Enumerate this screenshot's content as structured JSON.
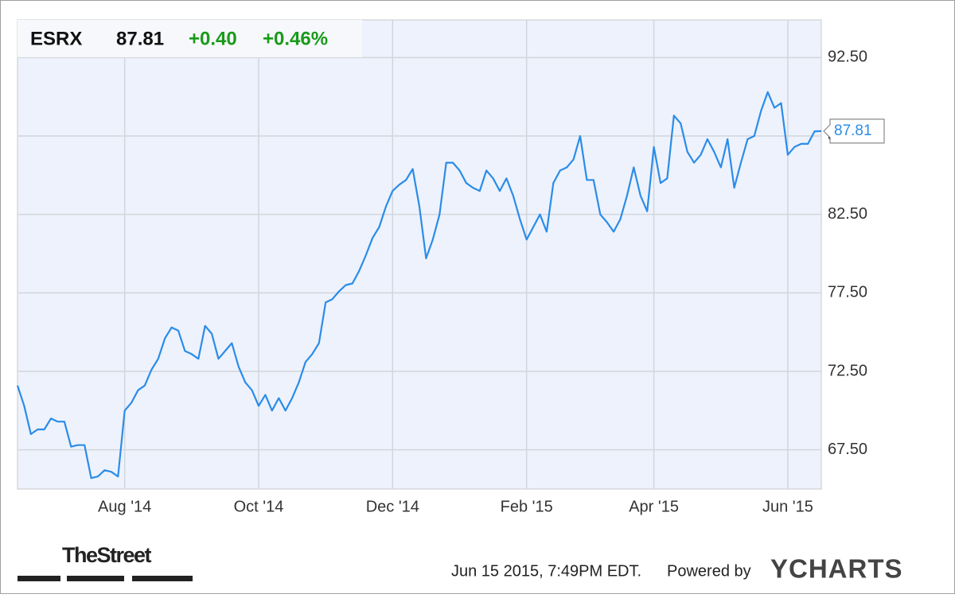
{
  "header": {
    "symbol": "ESRX",
    "change": "+0.40",
    "change_percent": "+0.46%"
  },
  "footer": {
    "timestamp": "Jun 15 2015, 7:49PM EDT.",
    "powered_by": "Powered by",
    "brand": "YCHARTS",
    "publisher": "TheStreet"
  },
  "chart_data": {
    "type": "line",
    "color": "#2b8ce8",
    "grid": true,
    "categories": [
      null,
      null,
      null,
      null,
      null,
      null,
      null,
      null,
      null,
      null,
      null,
      null,
      null,
      null,
      null,
      null,
      "Aug '14",
      null,
      null,
      null,
      null,
      null,
      null,
      null,
      null,
      null,
      null,
      null,
      null,
      null,
      null,
      null,
      null,
      null,
      null,
      null,
      "Oct '14",
      null,
      null,
      null,
      null,
      null,
      null,
      null,
      null,
      null,
      null,
      null,
      null,
      null,
      null,
      null,
      null,
      null,
      null,
      null,
      "Dec '14",
      null,
      null,
      null,
      null,
      null,
      null,
      null,
      null,
      null,
      null,
      null,
      null,
      null,
      null,
      null,
      null,
      null,
      null,
      null,
      "Feb '15",
      null,
      null,
      null,
      null,
      null,
      null,
      null,
      null,
      null,
      null,
      null,
      null,
      null,
      null,
      null,
      null,
      null,
      null,
      "Apr '15",
      null,
      null,
      null,
      null,
      null,
      null,
      null,
      null,
      null,
      null,
      null,
      null,
      null,
      null,
      null,
      null,
      null,
      null,
      null,
      "Jun '15",
      null,
      null,
      null,
      null,
      null
    ],
    "values": [
      71.6,
      70.3,
      68.5,
      68.8,
      68.8,
      69.5,
      69.3,
      69.3,
      67.7,
      67.8,
      67.8,
      65.7,
      65.8,
      66.2,
      66.1,
      65.8,
      70.0,
      70.5,
      71.3,
      71.6,
      72.6,
      73.3,
      74.6,
      75.3,
      75.1,
      73.8,
      73.6,
      73.3,
      75.4,
      74.9,
      73.3,
      73.8,
      74.3,
      72.8,
      71.8,
      71.3,
      70.3,
      71.0,
      70.0,
      70.8,
      70.0,
      70.8,
      71.8,
      73.1,
      73.6,
      74.3,
      76.9,
      77.1,
      77.6,
      78.0,
      78.1,
      78.9,
      79.9,
      81.0,
      81.7,
      83.0,
      84.0,
      84.4,
      84.7,
      85.4,
      83.0,
      79.7,
      80.9,
      82.5,
      85.8,
      85.8,
      85.3,
      84.5,
      84.2,
      84.0,
      85.3,
      84.8,
      84.0,
      84.8,
      83.7,
      82.2,
      80.9,
      81.7,
      82.5,
      81.4,
      84.5,
      85.3,
      85.5,
      86.0,
      87.5,
      84.7,
      84.7,
      82.5,
      82.0,
      81.4,
      82.2,
      83.7,
      85.5,
      83.7,
      82.7,
      86.8,
      84.5,
      84.8,
      88.8,
      88.3,
      86.5,
      85.8,
      86.3,
      87.3,
      86.5,
      85.5,
      87.3,
      84.2,
      85.8,
      87.3,
      87.5,
      89.1,
      90.3,
      89.3,
      89.6,
      86.3,
      86.8,
      87.0,
      87.0,
      87.8,
      87.81
    ],
    "ylim": [
      65,
      94.9
    ],
    "yticks": [
      {
        "value": 67.5,
        "label": "67.50"
      },
      {
        "value": 72.5,
        "label": "72.50"
      },
      {
        "value": 77.5,
        "label": "77.50"
      },
      {
        "value": 82.5,
        "label": "82.50"
      },
      {
        "value": 87.5,
        "label": "87.50"
      },
      {
        "value": 92.5,
        "label": "92.50"
      }
    ]
  }
}
